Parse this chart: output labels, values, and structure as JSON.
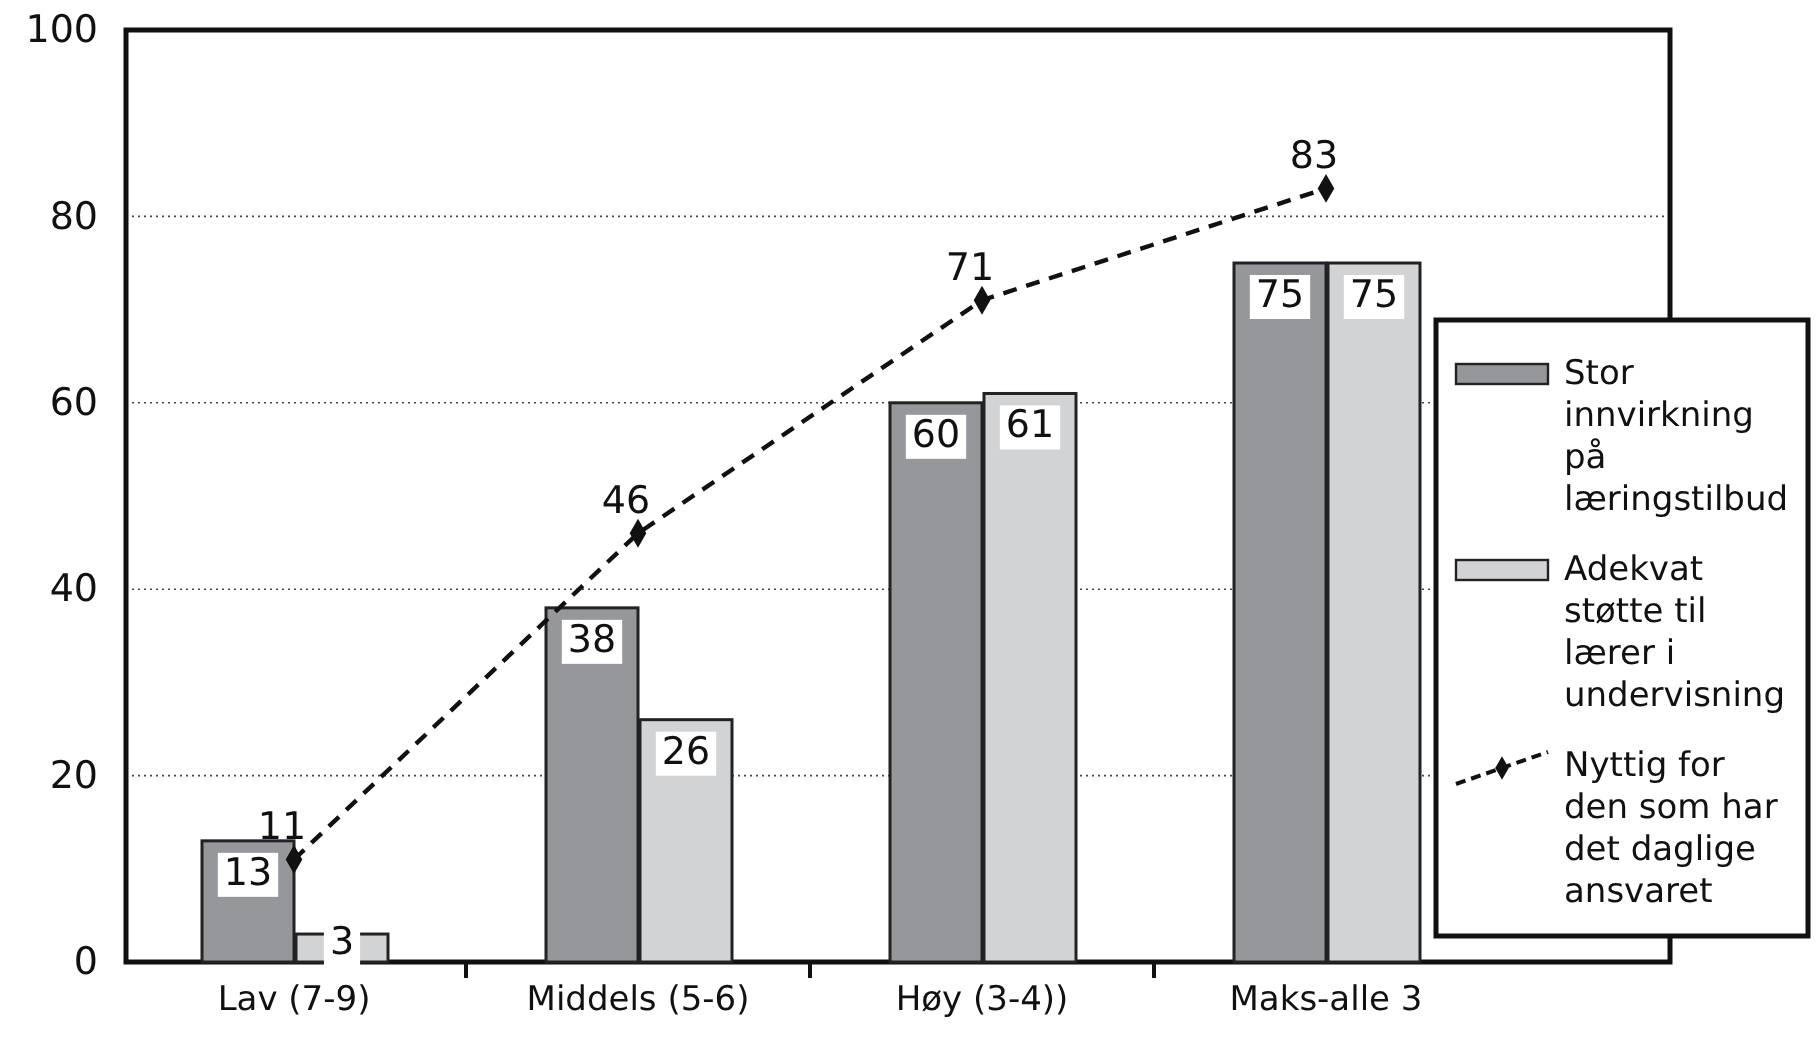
{
  "chart_data": {
    "type": "bar",
    "categories": [
      "Lav (7-9)",
      "Middels (5-6)",
      "Høy (3-4))",
      "Maks-alle 3"
    ],
    "series": [
      {
        "name": "Stor innvirkning på læringstilbud",
        "color": "#96979b",
        "values": [
          13,
          38,
          60,
          75
        ]
      },
      {
        "name": "Adekvat støtte til lærer i undervisning",
        "color": "#d2d3d5",
        "values": [
          3,
          26,
          61,
          75
        ]
      },
      {
        "name": "Nyttig for den som har det daglige ansvaret",
        "type": "line",
        "color": "#111111",
        "values": [
          11,
          46,
          71,
          83
        ],
        "marker": "diamond",
        "line_style": "dashed"
      }
    ],
    "ylim": [
      0,
      100
    ],
    "yticks": [
      0,
      20,
      40,
      60,
      80,
      100
    ],
    "grid": "y",
    "legend": "right",
    "data_labels": true
  }
}
